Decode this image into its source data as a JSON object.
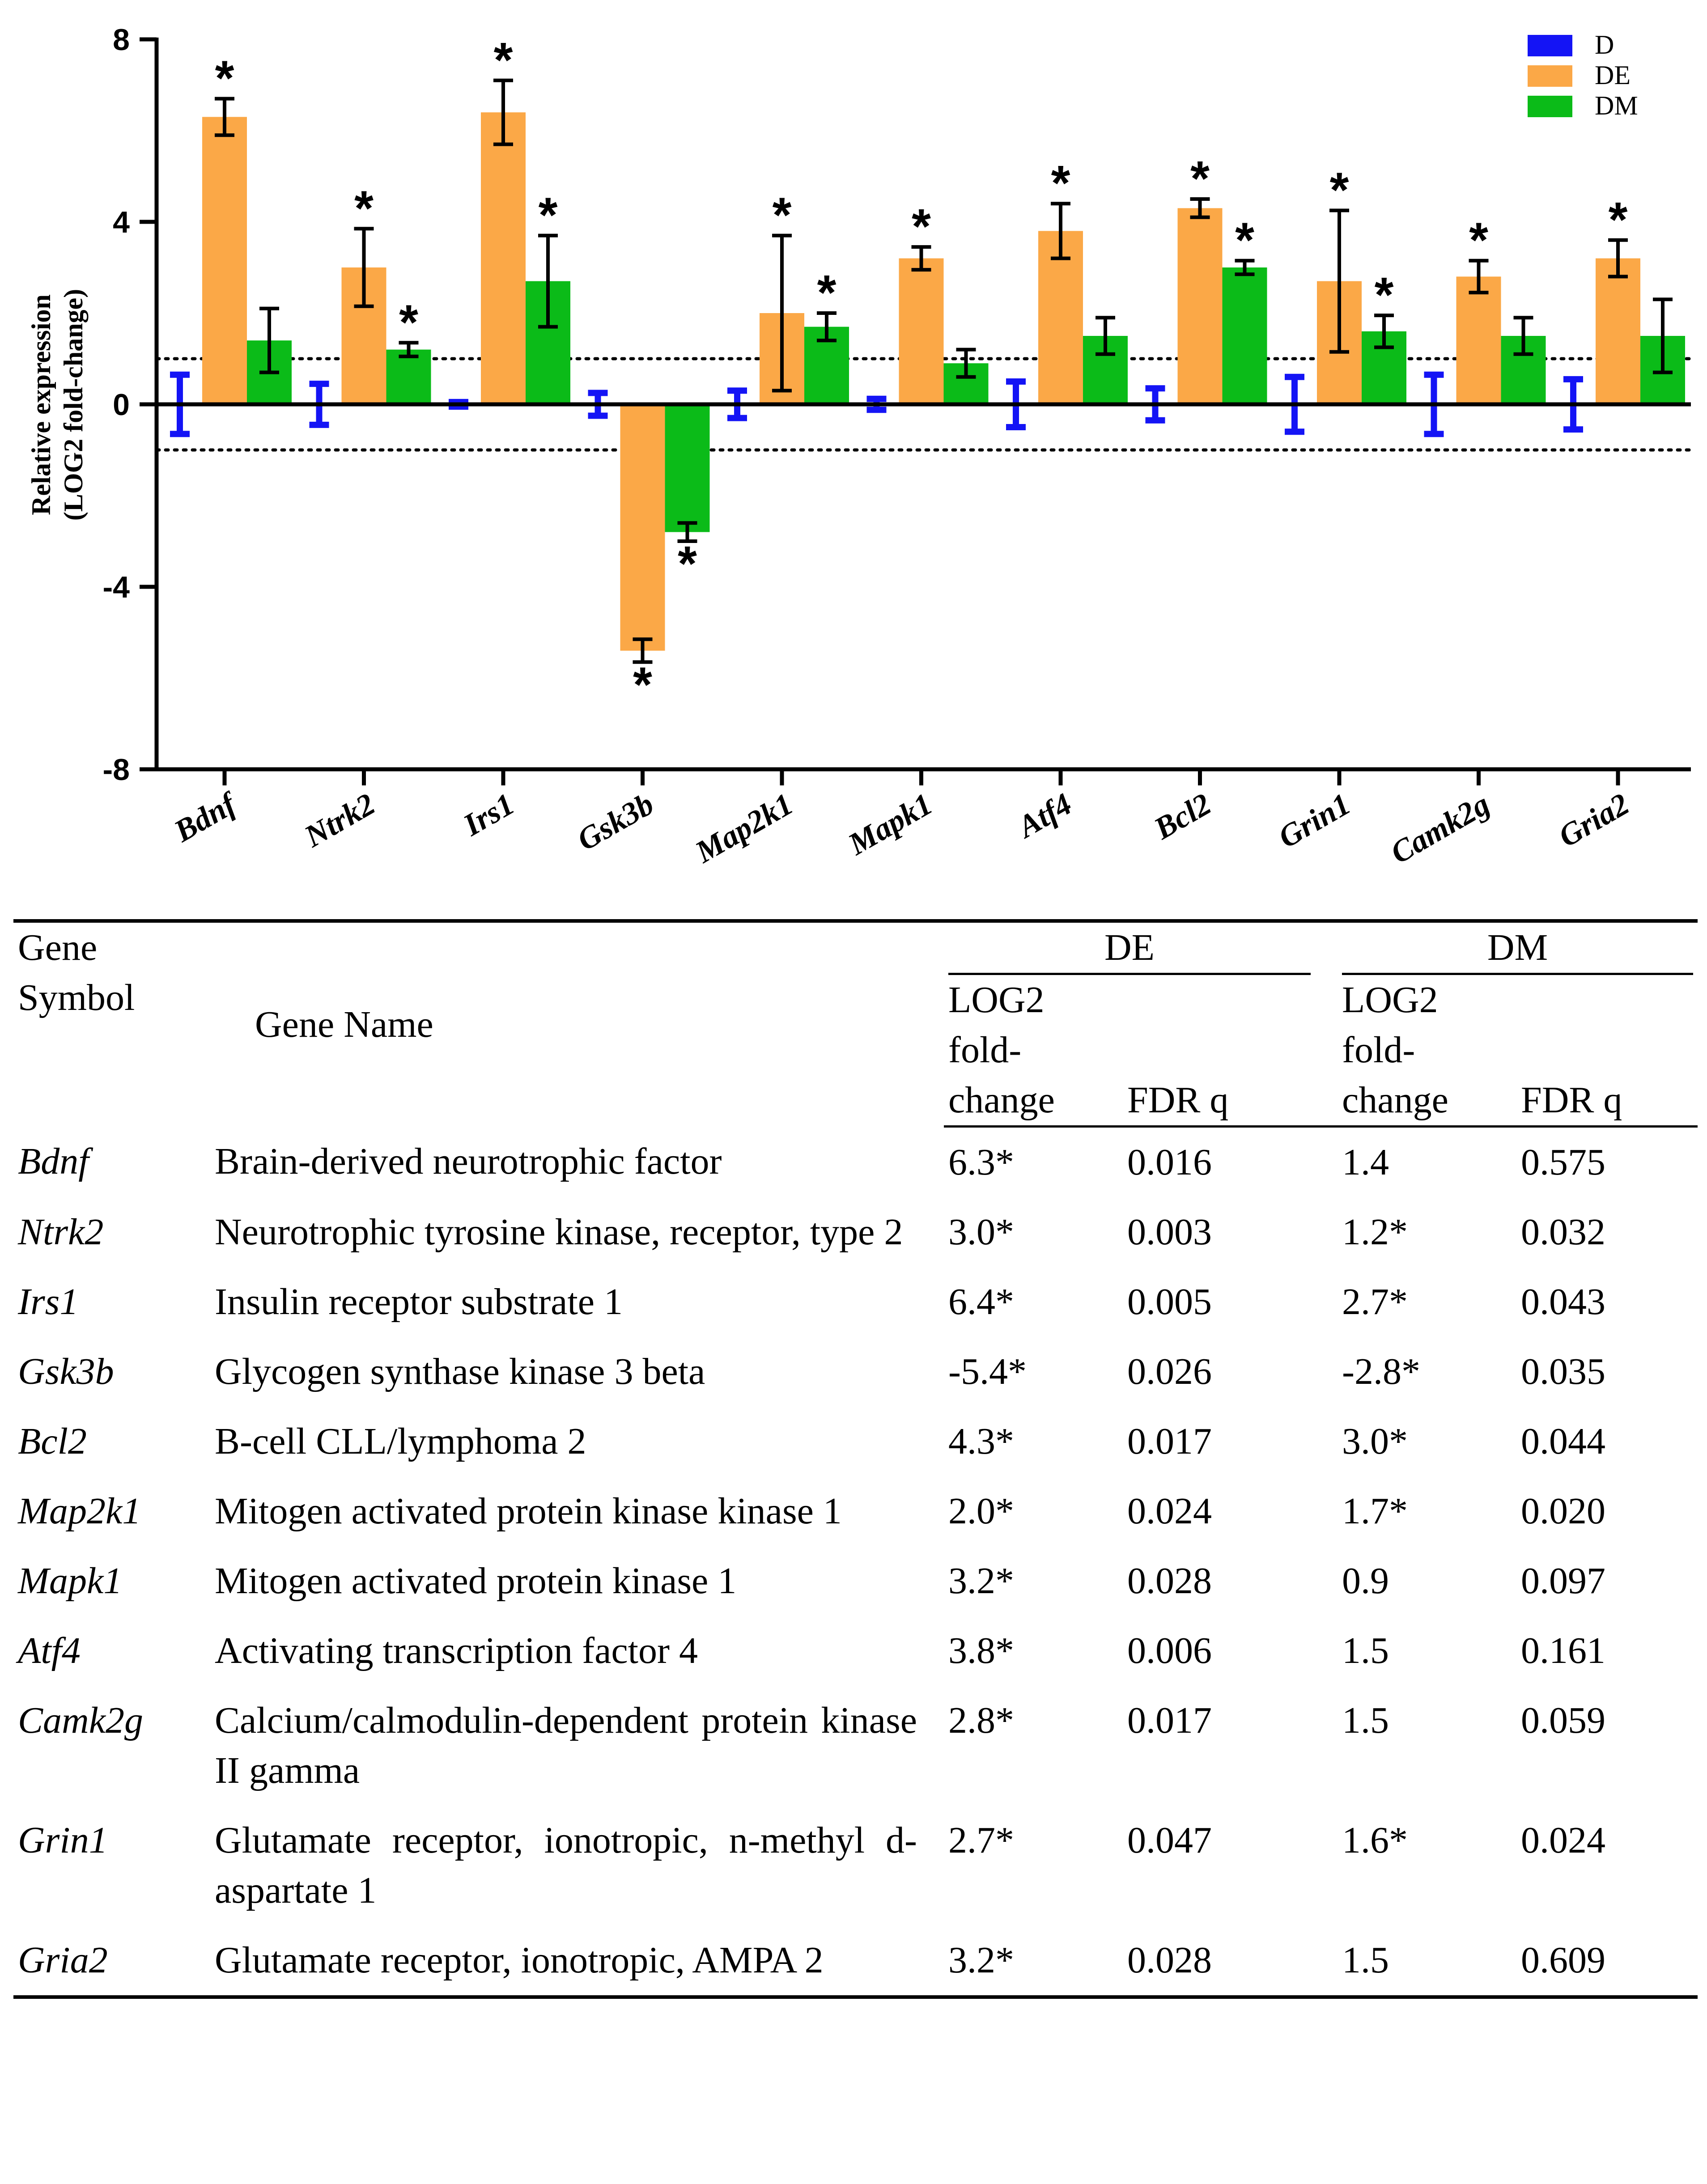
{
  "chart_data": {
    "type": "bar",
    "title": "",
    "xlabel": "",
    "ylabel": [
      "Relative expression",
      "(LOG2 fold-change)"
    ],
    "ylim": [
      -8,
      8
    ],
    "yticks": [
      "8",
      "4",
      "0",
      "-4",
      "-8"
    ],
    "tick_values": [
      8,
      4,
      0,
      -4,
      -8
    ],
    "reference_lines": [
      1,
      -1
    ],
    "categories": [
      "Bdnf",
      "Ntrk2",
      "Irs1",
      "Gsk3b",
      "Map2k1",
      "Mapk1",
      "Atf4",
      "Bcl2",
      "Grin1",
      "Camk2g",
      "Gria2"
    ],
    "legend": {
      "placement": "top-right",
      "entries": [
        "D",
        "DE",
        "DM"
      ]
    },
    "series": [
      {
        "name": "D",
        "color": "#1414f5",
        "values": [
          0,
          0,
          0,
          0,
          0,
          0,
          0,
          0,
          0,
          0,
          0
        ],
        "errors": [
          0.65,
          0.45,
          0.05,
          0.25,
          0.3,
          0.12,
          0.5,
          0.35,
          0.6,
          0.65,
          0.55
        ],
        "significant": [
          false,
          false,
          false,
          false,
          false,
          false,
          false,
          false,
          false,
          false,
          false
        ]
      },
      {
        "name": "DE",
        "color": "#fba847",
        "values": [
          6.3,
          3.0,
          6.4,
          -5.4,
          2.0,
          3.2,
          3.8,
          4.3,
          2.7,
          2.8,
          3.2
        ],
        "errors": [
          0.4,
          0.85,
          0.7,
          0.25,
          1.7,
          0.25,
          0.6,
          0.2,
          1.55,
          0.35,
          0.4
        ],
        "significant": [
          true,
          true,
          true,
          true,
          true,
          true,
          true,
          true,
          true,
          true,
          true
        ]
      },
      {
        "name": "DM",
        "color": "#0bbb18",
        "values": [
          1.4,
          1.2,
          2.7,
          -2.8,
          1.7,
          0.9,
          1.5,
          3.0,
          1.6,
          1.5,
          1.5
        ],
        "errors": [
          0.7,
          0.15,
          1.0,
          0.2,
          0.3,
          0.3,
          0.4,
          0.15,
          0.35,
          0.4,
          0.8
        ],
        "significant": [
          false,
          true,
          true,
          true,
          true,
          false,
          false,
          true,
          true,
          false,
          false
        ]
      }
    ],
    "significance_marker": "*"
  },
  "table": {
    "headers": {
      "gene_symbol": [
        "Gene",
        "Symbol"
      ],
      "gene_name": "Gene Name",
      "group_de": "DE",
      "group_dm": "DM",
      "log2": [
        "LOG2",
        "fold-",
        "change"
      ],
      "fdr": "FDR q"
    },
    "rows": [
      {
        "symbol": "Bdnf",
        "name": "Brain-derived neurotrophic factor",
        "de_fc": "6.3*",
        "de_fdr": "0.016",
        "dm_fc": "1.4",
        "dm_fdr": "0.575"
      },
      {
        "symbol": "Ntrk2",
        "name": "Neurotrophic tyrosine kinase, receptor, type 2",
        "de_fc": "3.0*",
        "de_fdr": "0.003",
        "dm_fc": "1.2*",
        "dm_fdr": "0.032"
      },
      {
        "symbol": "Irs1",
        "name": "Insulin receptor substrate 1",
        "de_fc": "6.4*",
        "de_fdr": "0.005",
        "dm_fc": "2.7*",
        "dm_fdr": "0.043"
      },
      {
        "symbol": "Gsk3b",
        "name": "Glycogen synthase kinase 3 beta",
        "de_fc": "-5.4*",
        "de_fdr": "0.026",
        "dm_fc": "-2.8*",
        "dm_fdr": "0.035"
      },
      {
        "symbol": "Bcl2",
        "name": "B-cell CLL/lymphoma 2",
        "de_fc": "4.3*",
        "de_fdr": "0.017",
        "dm_fc": "3.0*",
        "dm_fdr": "0.044"
      },
      {
        "symbol": "Map2k1",
        "name": "Mitogen activated protein kinase kinase 1",
        "de_fc": "2.0*",
        "de_fdr": "0.024",
        "dm_fc": "1.7*",
        "dm_fdr": "0.020"
      },
      {
        "symbol": "Mapk1",
        "name": "Mitogen activated protein kinase 1",
        "de_fc": "3.2*",
        "de_fdr": "0.028",
        "dm_fc": "0.9",
        "dm_fdr": "0.097"
      },
      {
        "symbol": "Atf4",
        "name": "Activating transcription factor 4",
        "de_fc": "3.8*",
        "de_fdr": "0.006",
        "dm_fc": "1.5",
        "dm_fdr": "0.161"
      },
      {
        "symbol": "Camk2g",
        "name": "Calcium/calmodulin-dependent protein kinase II gamma",
        "de_fc": "2.8*",
        "de_fdr": "0.017",
        "dm_fc": "1.5",
        "dm_fdr": "0.059"
      },
      {
        "symbol": "Grin1",
        "name": "Glutamate receptor, ionotropic, n-methyl d-aspartate 1",
        "de_fc": "2.7*",
        "de_fdr": "0.047",
        "dm_fc": "1.6*",
        "dm_fdr": "0.024"
      },
      {
        "symbol": "Gria2",
        "name": "Glutamate receptor, ionotropic, AMPA 2",
        "de_fc": "3.2*",
        "de_fdr": "0.028",
        "dm_fc": "1.5",
        "dm_fdr": "0.609"
      }
    ]
  }
}
